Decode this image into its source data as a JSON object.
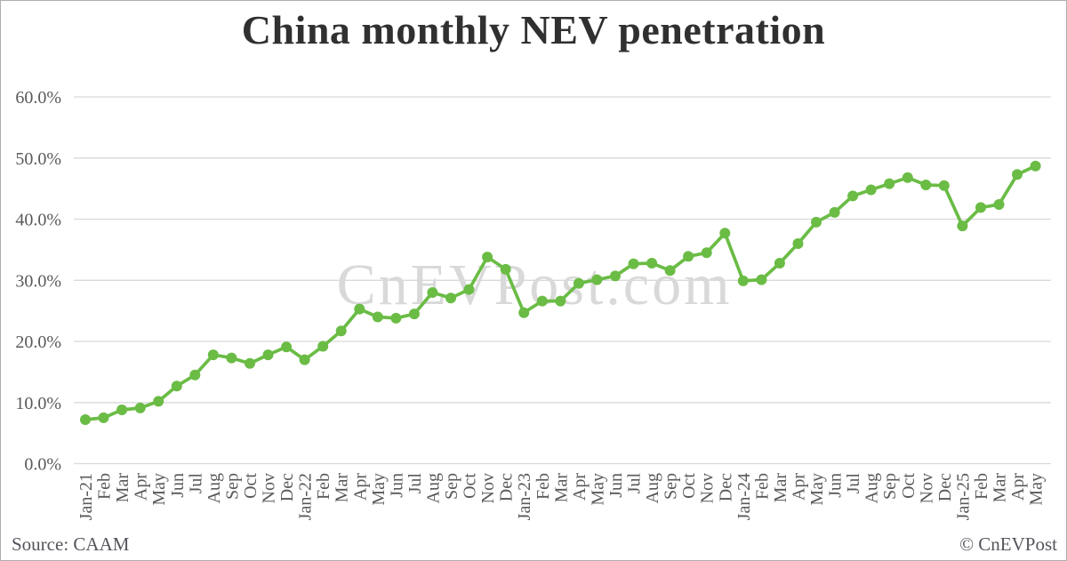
{
  "title": "China monthly NEV penetration",
  "watermark": "CnEVPost.com",
  "footer": {
    "source": "Source: CAAM",
    "copyright": "© CnEVPost"
  },
  "colors": {
    "background": "#ffffff",
    "border": "#aeaeae",
    "line": "#6abc45",
    "grid": "#d9d9d9",
    "axis_text": "#595959",
    "title_text": "#303030",
    "watermark_text": "#d9d9d9",
    "footer_text": "#54555c"
  },
  "chart_data": {
    "type": "line",
    "title": "China monthly NEV penetration",
    "xlabel": "",
    "ylabel": "",
    "ylim": [
      0,
      60
    ],
    "yticks": [
      0,
      10,
      20,
      30,
      40,
      50,
      60
    ],
    "ytick_labels": [
      "0.0%",
      "10.0%",
      "20.0%",
      "30.0%",
      "40.0%",
      "50.0%",
      "60.0%"
    ],
    "grid": "horizontal",
    "legend": "none",
    "marker": "circle",
    "x": [
      "Jan-21",
      "Feb",
      "Mar",
      "Apr",
      "May",
      "Jun",
      "Jul",
      "Aug",
      "Sep",
      "Oct",
      "Nov",
      "Dec",
      "Jan-22",
      "Feb",
      "Mar",
      "Apr",
      "May",
      "Jun",
      "Jul",
      "Aug",
      "Sep",
      "Oct",
      "Nov",
      "Dec",
      "Jan-23",
      "Feb",
      "Mar",
      "Apr",
      "May",
      "Jun",
      "Jul",
      "Aug",
      "Sep",
      "Oct",
      "Nov",
      "Dec",
      "Jan-24",
      "Feb",
      "Mar",
      "Apr",
      "May",
      "Jun",
      "Jul",
      "Aug",
      "Sep",
      "Oct",
      "Nov",
      "Dec",
      "Jan-25",
      "Feb",
      "Mar",
      "Apr",
      "May"
    ],
    "series": [
      {
        "name": "NEV penetration",
        "unit": "%",
        "values": [
          7.2,
          7.5,
          8.8,
          9.1,
          10.2,
          12.7,
          14.5,
          17.8,
          17.3,
          16.4,
          17.8,
          19.1,
          17.0,
          19.2,
          21.7,
          25.3,
          24.0,
          23.8,
          24.5,
          28.0,
          27.1,
          28.5,
          33.8,
          31.8,
          24.7,
          26.6,
          26.6,
          29.5,
          30.1,
          30.7,
          32.7,
          32.8,
          31.6,
          33.9,
          34.5,
          37.7,
          29.9,
          30.1,
          32.8,
          36.0,
          39.5,
          41.1,
          43.8,
          44.8,
          45.8,
          46.8,
          45.6,
          45.5,
          38.9,
          41.9,
          42.4,
          47.3,
          48.7
        ]
      }
    ]
  }
}
